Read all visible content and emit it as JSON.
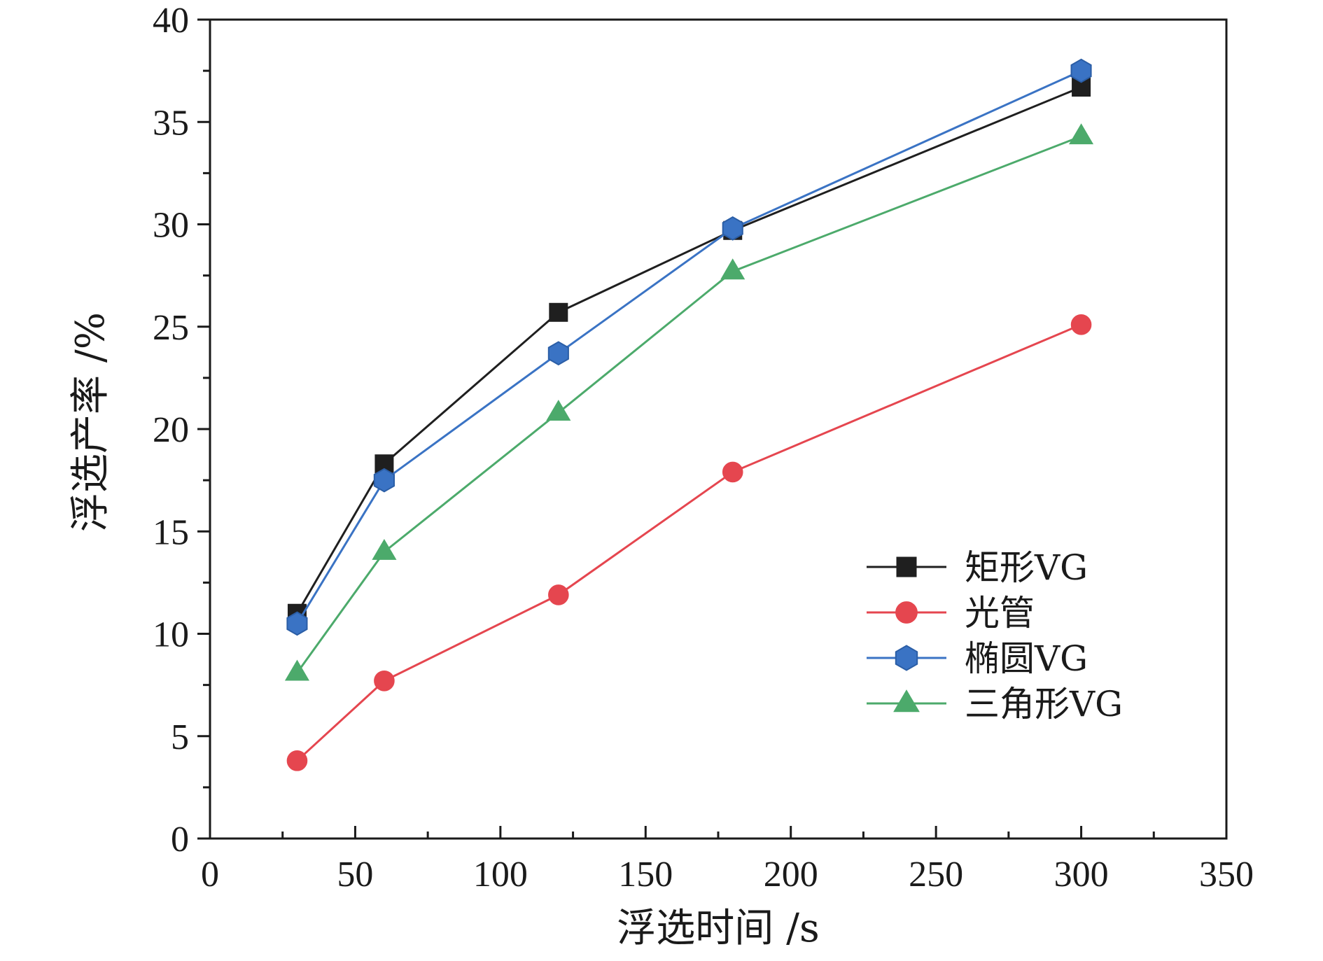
{
  "chart_data": {
    "type": "line",
    "title": "",
    "xlabel": "浮选时间 /s",
    "ylabel": "浮选产率 /%",
    "xlim": [
      0,
      350
    ],
    "ylim": [
      0,
      40
    ],
    "x_ticks": [
      0,
      50,
      100,
      150,
      200,
      250,
      300,
      350
    ],
    "y_ticks": [
      0,
      5,
      10,
      15,
      20,
      25,
      30,
      35,
      40
    ],
    "x_tick_labels": [
      "0",
      "50",
      "100",
      "150",
      "200",
      "250",
      "300",
      "350"
    ],
    "y_tick_labels": [
      "0",
      "5",
      "10",
      "15",
      "20",
      "25",
      "30",
      "35",
      "40"
    ],
    "grid": false,
    "legend_position": "bottom-right",
    "x": [
      30,
      60,
      120,
      180,
      300
    ],
    "series": [
      {
        "name": "矩形VG",
        "values": [
          11.0,
          18.3,
          25.7,
          29.7,
          36.7
        ],
        "color": "#1f1f1f",
        "marker": "square"
      },
      {
        "name": "光管",
        "values": [
          3.8,
          7.7,
          11.9,
          17.9,
          25.1
        ],
        "color": "#e5464f",
        "marker": "circle"
      },
      {
        "name": "椭圆VG",
        "values": [
          10.5,
          17.5,
          23.7,
          29.8,
          37.5
        ],
        "color": "#3a73c4",
        "marker": "hexagon"
      },
      {
        "name": "三角形VG",
        "values": [
          8.1,
          14.0,
          20.8,
          27.7,
          34.3
        ],
        "color": "#4caa6b",
        "marker": "triangle"
      }
    ]
  }
}
